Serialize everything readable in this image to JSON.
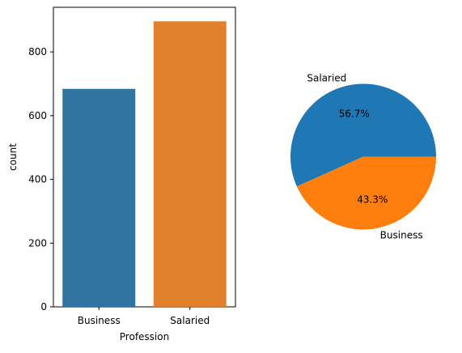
{
  "chart_data": [
    {
      "type": "bar",
      "categories": [
        "Business",
        "Salaried"
      ],
      "values": [
        684,
        896
      ],
      "colors": [
        "#3274a1",
        "#e1812c"
      ],
      "xlabel": "Profession",
      "ylabel": "count",
      "ylim": [
        0,
        940
      ],
      "yticks": [
        0,
        200,
        400,
        600,
        800
      ],
      "grid": false,
      "legend": "none"
    },
    {
      "type": "pie",
      "labels": [
        "Salaried",
        "Business"
      ],
      "values": [
        56.7,
        43.3
      ],
      "value_labels": [
        "56.7%",
        "43.3%"
      ],
      "colors": [
        "#1f77b4",
        "#ff7f0e"
      ],
      "legend": "none"
    }
  ]
}
